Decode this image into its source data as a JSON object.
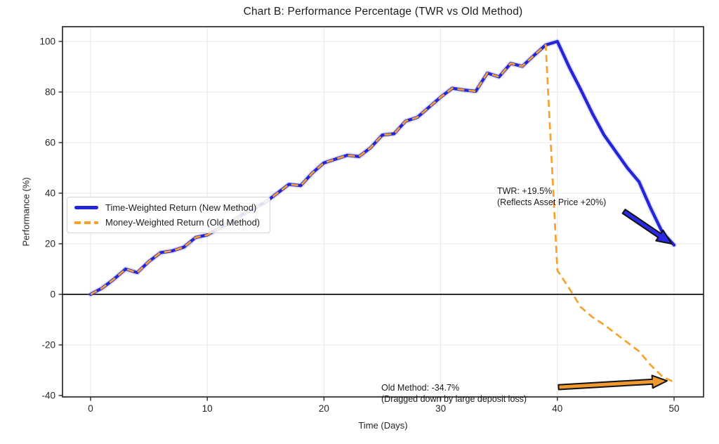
{
  "title": "Chart B: Performance Percentage (TWR vs Old Method)",
  "axes": {
    "xlabel": "Time (Days)",
    "ylabel": "Performance (%)",
    "x_ticks": [
      0,
      10,
      20,
      30,
      40,
      50
    ],
    "y_ticks": [
      -40,
      -20,
      0,
      20,
      40,
      60,
      80,
      100
    ]
  },
  "chart_data": {
    "type": "line",
    "title": "Chart B: Performance Percentage (TWR vs Old Method)",
    "xlabel": "Time (Days)",
    "ylabel": "Performance (%)",
    "xlim": [
      -2.4,
      52.5
    ],
    "ylim": [
      -40.6,
      105.8
    ],
    "grid": true,
    "legend_position": "center-left",
    "x": [
      0,
      1,
      2,
      3,
      4,
      5,
      6,
      7,
      8,
      9,
      10,
      11,
      12,
      13,
      14,
      15,
      16,
      17,
      18,
      19,
      20,
      21,
      22,
      23,
      24,
      25,
      26,
      27,
      28,
      29,
      30,
      31,
      32,
      33,
      34,
      35,
      36,
      37,
      38,
      39,
      40,
      41,
      42,
      43,
      44,
      45,
      46,
      47,
      48,
      49,
      50
    ],
    "series": [
      {
        "name": "Time-Weighted Return (New Method)",
        "color": "#2424d8",
        "style": "solid",
        "linewidth": 4.3,
        "values": [
          0,
          2.5,
          6,
          10,
          8.6,
          13,
          16.5,
          17.2,
          18.7,
          22.5,
          23.5,
          26,
          28.5,
          31.5,
          34,
          36.5,
          40,
          43.5,
          43,
          48,
          52,
          53.5,
          55,
          54.5,
          58,
          63,
          63.5,
          68.5,
          70,
          74,
          78,
          81.5,
          80.8,
          80.3,
          87.5,
          86,
          91.3,
          90.2,
          94.5,
          98.6,
          100,
          90,
          81,
          71.5,
          63,
          56.5,
          50,
          44.5,
          34,
          24.5,
          19.5
        ]
      },
      {
        "name": "Money-Weighted Return (Old Method)",
        "color": "#f5a32e",
        "style": "dashed",
        "linewidth": 2.7,
        "values": [
          0,
          2.5,
          6,
          10,
          8.6,
          13,
          16.5,
          17.2,
          18.7,
          22.5,
          23.5,
          26,
          28.5,
          31.5,
          34,
          36.5,
          40,
          43.5,
          43,
          48,
          52,
          53.5,
          55,
          54.5,
          58,
          63,
          63.5,
          68.5,
          70,
          74,
          78,
          81.5,
          80.8,
          80.3,
          87.5,
          86,
          91.3,
          90.2,
          94.5,
          98.6,
          9.5,
          2.5,
          -5,
          -9,
          -12,
          -15.5,
          -19,
          -22.5,
          -28,
          -32.5,
          -34.7
        ]
      }
    ],
    "final_values": {
      "twr_pct": 19.5,
      "old_method_pct": -34.7
    }
  },
  "legend": {
    "items": [
      {
        "label": "Time-Weighted Return (New Method)"
      },
      {
        "label": "Money-Weighted Return (Old Method)"
      }
    ]
  },
  "annotations": {
    "twr": {
      "line1": "TWR: +19.5%",
      "line2": "(Reflects Asset Price +20%)"
    },
    "old": {
      "line1": "Old Method: -34.7%",
      "line2": "(Dragged down by large deposit loss)"
    }
  },
  "arrows": [
    {
      "name": "twr-arrow",
      "color": "#2a2ae4",
      "from": [
        45.7,
        32.8
      ],
      "to": [
        49.8,
        20.0
      ]
    },
    {
      "name": "old-method-arrow",
      "color": "#f0992e",
      "from": [
        40.1,
        -36.7
      ],
      "to": [
        49.4,
        -34.2
      ]
    }
  ],
  "style": {
    "grid_color": "#e8e8e8",
    "spine_color": "#2b2b2b",
    "zero_line_color": "#111111",
    "tick_color": "#262626",
    "halo_color": "rgba(130,130,235,0.28)"
  }
}
